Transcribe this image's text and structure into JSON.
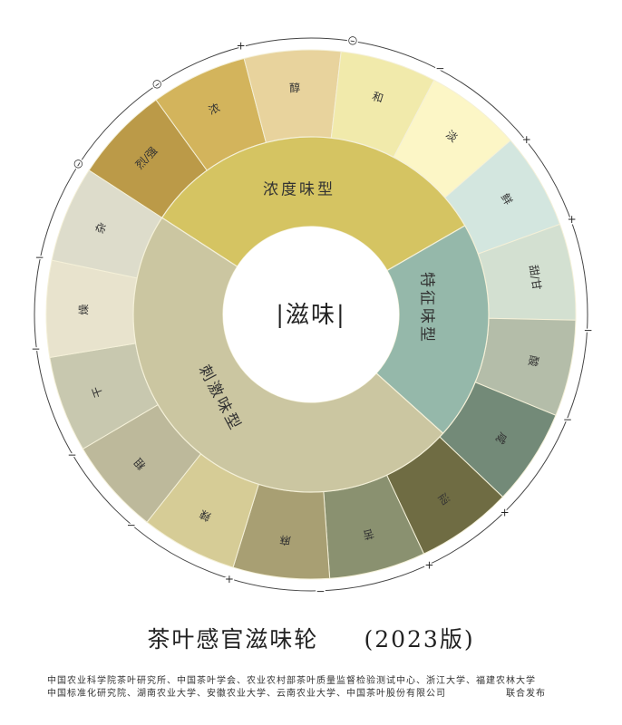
{
  "center_label": "|滋味|",
  "inner_ring": [
    {
      "label": "浓度味型",
      "color": "#d5c462"
    },
    {
      "label": "特征味型",
      "color": "#95b8aa"
    },
    {
      "label": "刺激味型",
      "color": "#cbc6a1"
    }
  ],
  "outer_ring": [
    {
      "label": "烈/强",
      "group": "浓度味型",
      "color": "#bb9a48"
    },
    {
      "label": "浓",
      "group": "浓度味型",
      "color": "#d3b45c"
    },
    {
      "label": "醇",
      "group": "浓度味型",
      "color": "#e8d39d"
    },
    {
      "label": "和",
      "group": "浓度味型",
      "color": "#f1eaab"
    },
    {
      "label": "淡",
      "group": "浓度味型",
      "color": "#fcf6c6"
    },
    {
      "label": "鲜",
      "group": "特征味型",
      "color": "#d3e6df"
    },
    {
      "label": "甜/甘",
      "group": "特征味型",
      "color": "#d3e0d1"
    },
    {
      "label": "酸",
      "group": "特征味型",
      "color": "#b4bda9"
    },
    {
      "label": "咸",
      "group": "特征味型",
      "color": "#738a78"
    },
    {
      "label": "涩",
      "group": "刺激味型",
      "color": "#6f6c43"
    },
    {
      "label": "苦",
      "group": "刺激味型",
      "color": "#8a9170"
    },
    {
      "label": "麻",
      "group": "刺激味型",
      "color": "#a89f73"
    },
    {
      "label": "辣",
      "group": "刺激味型",
      "color": "#d6cc96"
    },
    {
      "label": "粗",
      "group": "刺激味型",
      "color": "#bdb99b"
    },
    {
      "label": "干",
      "group": "刺激味型",
      "color": "#c8c8af"
    },
    {
      "label": "燥",
      "group": "刺激味型",
      "color": "#e8e3cd"
    },
    {
      "label": "杂",
      "group": "刺激味型",
      "color": "#dddccb"
    }
  ],
  "rim_marks": [
    {
      "symbol": "○"
    },
    {
      "symbol": "○"
    },
    {
      "symbol": "+"
    },
    {
      "symbol": "○"
    },
    {
      "symbol": "−"
    },
    {
      "symbol": "+"
    },
    {
      "symbol": "+"
    },
    {
      "symbol": "−"
    },
    {
      "symbol": "−"
    },
    {
      "symbol": "+"
    },
    {
      "symbol": "+"
    },
    {
      "symbol": "−"
    },
    {
      "symbol": "+"
    },
    {
      "symbol": "−"
    },
    {
      "symbol": "−"
    },
    {
      "symbol": "−"
    },
    {
      "symbol": "−"
    }
  ],
  "title": "茶叶感官滋味轮",
  "edition": "(2023版)",
  "footer": {
    "line1": "中国农业科学院茶叶研究所、中国茶叶学会、农业农村部茶叶质量监督检验测试中心、浙江大学、福建农林大学",
    "line2": "中国标准化研究院、湖南农业大学、安徽农业大学、云南农业大学、中国茶叶股份有限公司",
    "publish": "联合发布"
  }
}
